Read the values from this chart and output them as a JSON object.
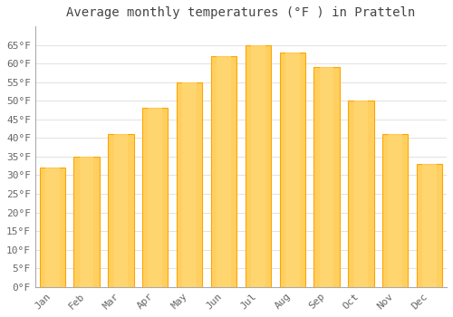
{
  "title": "Average monthly temperatures (°F ) in Pratteln",
  "months": [
    "Jan",
    "Feb",
    "Mar",
    "Apr",
    "May",
    "Jun",
    "Jul",
    "Aug",
    "Sep",
    "Oct",
    "Nov",
    "Dec"
  ],
  "values": [
    32,
    35,
    41,
    48,
    55,
    62,
    65,
    63,
    59,
    50,
    41,
    33
  ],
  "bar_color_main": "#FFA500",
  "bar_color_light": "#FFD060",
  "background_color": "#FFFFFF",
  "plot_background_color": "#FFFFFF",
  "ytick_labels": [
    "0°F",
    "5°F",
    "10°F",
    "15°F",
    "20°F",
    "25°F",
    "30°F",
    "35°F",
    "40°F",
    "45°F",
    "50°F",
    "55°F",
    "60°F",
    "65°F"
  ],
  "ytick_values": [
    0,
    5,
    10,
    15,
    20,
    25,
    30,
    35,
    40,
    45,
    50,
    55,
    60,
    65
  ],
  "ylim": [
    0,
    70
  ],
  "title_fontsize": 10,
  "tick_fontsize": 8,
  "font_family": "monospace",
  "grid_color": "#DDDDDD",
  "title_color": "#444444",
  "tick_color": "#666666",
  "bar_width": 0.75,
  "spine_color": "#AAAAAA"
}
